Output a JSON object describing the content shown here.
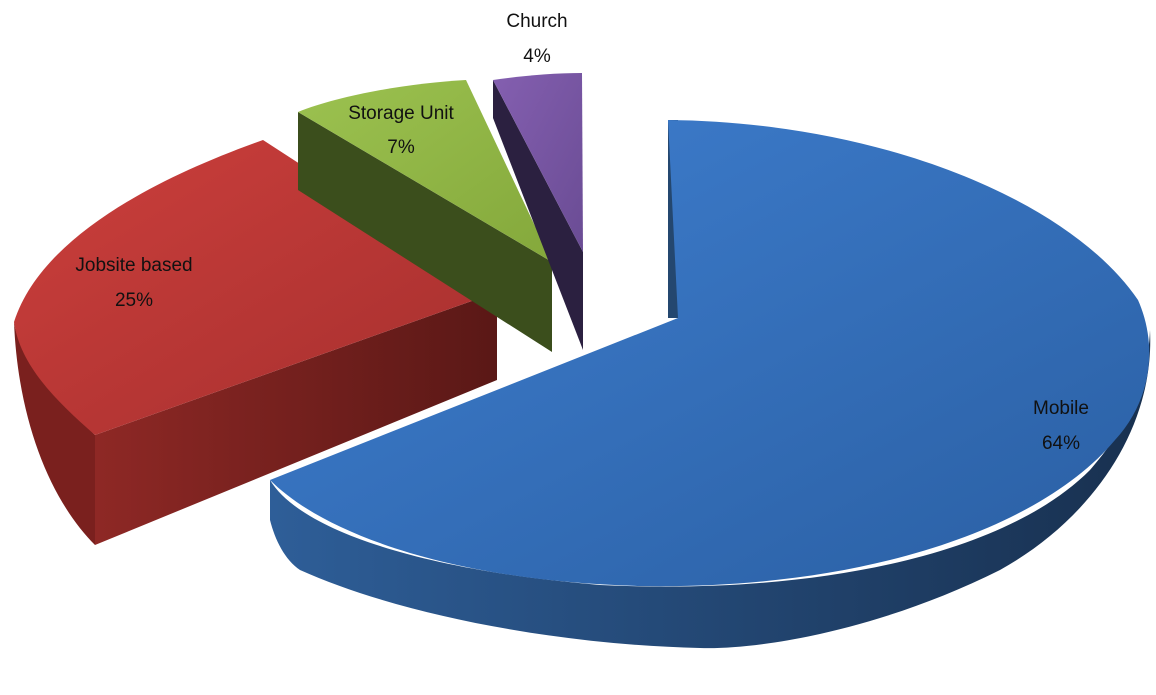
{
  "chart_data": {
    "type": "pie",
    "style": "3d-exploded",
    "title": "",
    "slices": [
      {
        "name": "Mobile",
        "value": 64,
        "value_label": "64%",
        "color": "#3A78C6"
      },
      {
        "name": "Jobsite based",
        "value": 25,
        "value_label": "25%",
        "color": "#C23C3A"
      },
      {
        "name": "Storage Unit",
        "value": 7,
        "value_label": "7%",
        "color": "#93B842"
      },
      {
        "name": "Church",
        "value": 4,
        "value_label": "4%",
        "color": "#7C5AA6"
      }
    ],
    "legend": "none"
  }
}
